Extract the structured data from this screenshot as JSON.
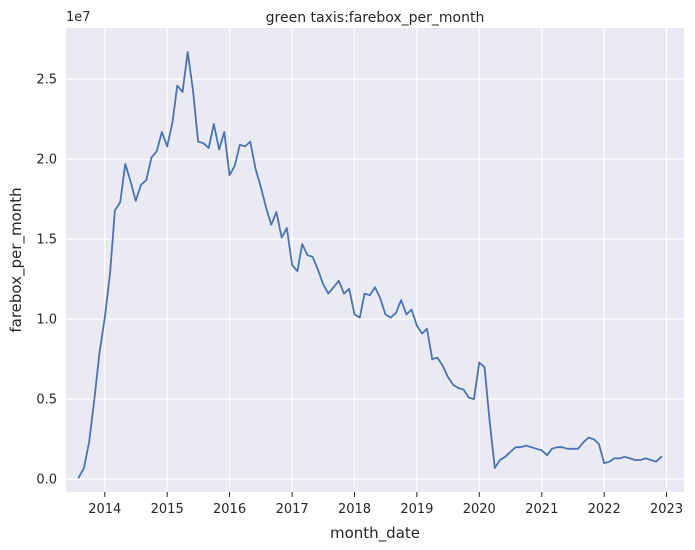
{
  "chart_data": {
    "type": "line",
    "title": "green taxis:farebox_per_month",
    "xlabel": "month_date",
    "ylabel": "farebox_per_month",
    "y_offset_label": "1e7",
    "y_scale": 10000000,
    "xlim": [
      "2013-05-19",
      "2023-04-13"
    ],
    "ylim": [
      -0.08,
      2.82
    ],
    "x_ticks": [
      "2014",
      "2015",
      "2016",
      "2017",
      "2018",
      "2019",
      "2020",
      "2021",
      "2022",
      "2023"
    ],
    "y_ticks": [
      {
        "value": 0.0,
        "label": "0.0"
      },
      {
        "value": 0.5,
        "label": "0.5"
      },
      {
        "value": 1.0,
        "label": "1.0"
      },
      {
        "value": 1.5,
        "label": "1.5"
      },
      {
        "value": 2.0,
        "label": "2.0"
      },
      {
        "value": 2.5,
        "label": "2.5"
      }
    ],
    "grid": true,
    "line_color": "#4c72b0",
    "background_color": "#eaeaf2",
    "grid_color": "#ffffff",
    "series": [
      {
        "x": [
          "2013-08",
          "2013-09",
          "2013-10",
          "2013-11",
          "2013-12",
          "2014-01",
          "2014-02",
          "2014-03",
          "2014-04",
          "2014-05",
          "2014-06",
          "2014-07",
          "2014-08",
          "2014-09",
          "2014-10",
          "2014-11",
          "2014-12",
          "2015-01",
          "2015-02",
          "2015-03",
          "2015-04",
          "2015-05",
          "2015-06",
          "2015-07",
          "2015-08",
          "2015-09",
          "2015-10",
          "2015-11",
          "2015-12",
          "2016-01",
          "2016-02",
          "2016-03",
          "2016-04",
          "2016-05",
          "2016-06",
          "2016-07",
          "2016-08",
          "2016-09",
          "2016-10",
          "2016-11",
          "2016-12",
          "2017-01",
          "2017-02",
          "2017-03",
          "2017-04",
          "2017-05",
          "2017-06",
          "2017-07",
          "2017-08",
          "2017-09",
          "2017-10",
          "2017-11",
          "2017-12",
          "2018-01",
          "2018-02",
          "2018-03",
          "2018-04",
          "2018-05",
          "2018-06",
          "2018-07",
          "2018-08",
          "2018-09",
          "2018-10",
          "2018-11",
          "2018-12",
          "2019-01",
          "2019-02",
          "2019-03",
          "2019-04",
          "2019-05",
          "2019-06",
          "2019-07",
          "2019-08",
          "2019-09",
          "2019-10",
          "2019-11",
          "2019-12",
          "2020-01",
          "2020-02",
          "2020-03",
          "2020-04",
          "2020-05",
          "2020-06",
          "2020-07",
          "2020-08",
          "2020-09",
          "2020-10",
          "2020-11",
          "2020-12",
          "2021-01",
          "2021-02",
          "2021-03",
          "2021-04",
          "2021-05",
          "2021-06",
          "2021-07",
          "2021-08",
          "2021-09",
          "2021-10",
          "2021-11",
          "2021-12",
          "2022-01",
          "2022-02",
          "2022-03",
          "2022-04",
          "2022-05",
          "2022-06",
          "2022-07",
          "2022-08",
          "2022-09",
          "2022-10",
          "2022-11",
          "2022-12"
        ],
        "values": [
          0.01,
          0.07,
          0.23,
          0.5,
          0.79,
          1.01,
          1.29,
          1.68,
          1.73,
          1.97,
          1.86,
          1.74,
          1.84,
          1.87,
          2.01,
          2.05,
          2.17,
          2.08,
          2.23,
          2.46,
          2.42,
          2.67,
          2.43,
          2.11,
          2.1,
          2.07,
          2.22,
          2.06,
          2.17,
          1.9,
          1.96,
          2.09,
          2.08,
          2.11,
          1.94,
          1.83,
          1.7,
          1.59,
          1.67,
          1.51,
          1.57,
          1.34,
          1.3,
          1.47,
          1.4,
          1.39,
          1.31,
          1.22,
          1.16,
          1.2,
          1.24,
          1.16,
          1.19,
          1.03,
          1.01,
          1.16,
          1.15,
          1.2,
          1.13,
          1.03,
          1.01,
          1.04,
          1.12,
          1.03,
          1.06,
          0.96,
          0.91,
          0.94,
          0.75,
          0.76,
          0.71,
          0.64,
          0.59,
          0.57,
          0.56,
          0.51,
          0.5,
          0.73,
          0.7,
          0.37,
          0.07,
          0.12,
          0.14,
          0.17,
          0.2,
          0.2,
          0.21,
          0.2,
          0.19,
          0.18,
          0.15,
          0.19,
          0.2,
          0.2,
          0.19,
          0.19,
          0.19,
          0.23,
          0.26,
          0.25,
          0.22,
          0.1,
          0.11,
          0.13,
          0.13,
          0.14,
          0.13,
          0.12,
          0.12,
          0.13,
          0.12,
          0.11,
          0.14
        ]
      }
    ]
  }
}
